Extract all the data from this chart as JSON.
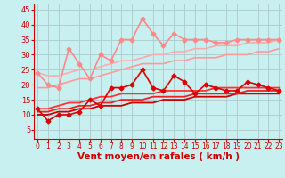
{
  "bg_color": "#c8f0f0",
  "grid_color": "#b0c8c8",
  "xlabel": "Vent moyen/en rafales ( km/h )",
  "xlabel_color": "#cc0000",
  "xlabel_fontsize": 7.5,
  "tick_color": "#cc0000",
  "ylim": [
    2,
    47
  ],
  "xlim": [
    -0.3,
    23.3
  ],
  "yticks": [
    5,
    10,
    15,
    20,
    25,
    30,
    35,
    40,
    45
  ],
  "xticks": [
    0,
    1,
    2,
    3,
    4,
    5,
    6,
    7,
    8,
    9,
    10,
    11,
    12,
    13,
    14,
    15,
    16,
    17,
    18,
    19,
    20,
    21,
    22,
    23
  ],
  "series": [
    {
      "color": "#dd0000",
      "lw": 1.2,
      "marker": "D",
      "markersize": 2.5,
      "zorder": 5,
      "data": [
        12,
        8,
        10,
        10,
        11,
        15,
        13,
        19,
        19,
        20,
        25,
        19,
        18,
        23,
        21,
        17,
        20,
        19,
        18,
        18,
        21,
        20,
        19,
        18
      ]
    },
    {
      "color": "#ff8888",
      "lw": 1.2,
      "marker": "D",
      "markersize": 2.5,
      "zorder": 4,
      "data": [
        24,
        20,
        19,
        32,
        27,
        22,
        30,
        28,
        35,
        35,
        42,
        37,
        33,
        37,
        35,
        35,
        35,
        34,
        34,
        35,
        35,
        35,
        35,
        35
      ]
    },
    {
      "color": "#cc0000",
      "lw": 1.3,
      "marker": null,
      "markersize": 0,
      "zorder": 3,
      "data": [
        10,
        10,
        11,
        11,
        12,
        12,
        13,
        13,
        13,
        14,
        14,
        14,
        15,
        15,
        15,
        16,
        16,
        16,
        16,
        17,
        17,
        17,
        17,
        17
      ]
    },
    {
      "color": "#ee2222",
      "lw": 1.3,
      "marker": null,
      "markersize": 0,
      "zorder": 3,
      "data": [
        11,
        11,
        12,
        12,
        13,
        13,
        14,
        14,
        15,
        15,
        15,
        16,
        16,
        16,
        16,
        17,
        17,
        17,
        17,
        17,
        18,
        18,
        18,
        18
      ]
    },
    {
      "color": "#ff3333",
      "lw": 1.3,
      "marker": null,
      "markersize": 0,
      "zorder": 3,
      "data": [
        12,
        12,
        13,
        14,
        14,
        15,
        16,
        16,
        17,
        17,
        17,
        17,
        18,
        18,
        18,
        18,
        18,
        19,
        19,
        19,
        19,
        19,
        19,
        19
      ]
    },
    {
      "color": "#ff9999",
      "lw": 1.2,
      "marker": null,
      "markersize": 0,
      "zorder": 2,
      "data": [
        19,
        19,
        20,
        21,
        22,
        22,
        23,
        24,
        25,
        26,
        27,
        27,
        27,
        28,
        28,
        29,
        29,
        29,
        30,
        30,
        30,
        31,
        31,
        32
      ]
    },
    {
      "color": "#ffaaaa",
      "lw": 1.2,
      "marker": null,
      "markersize": 0,
      "zorder": 2,
      "data": [
        24,
        23,
        23,
        24,
        25,
        25,
        26,
        27,
        28,
        28,
        29,
        30,
        30,
        31,
        31,
        32,
        32,
        33,
        33,
        33,
        34,
        34,
        34,
        35
      ]
    }
  ]
}
